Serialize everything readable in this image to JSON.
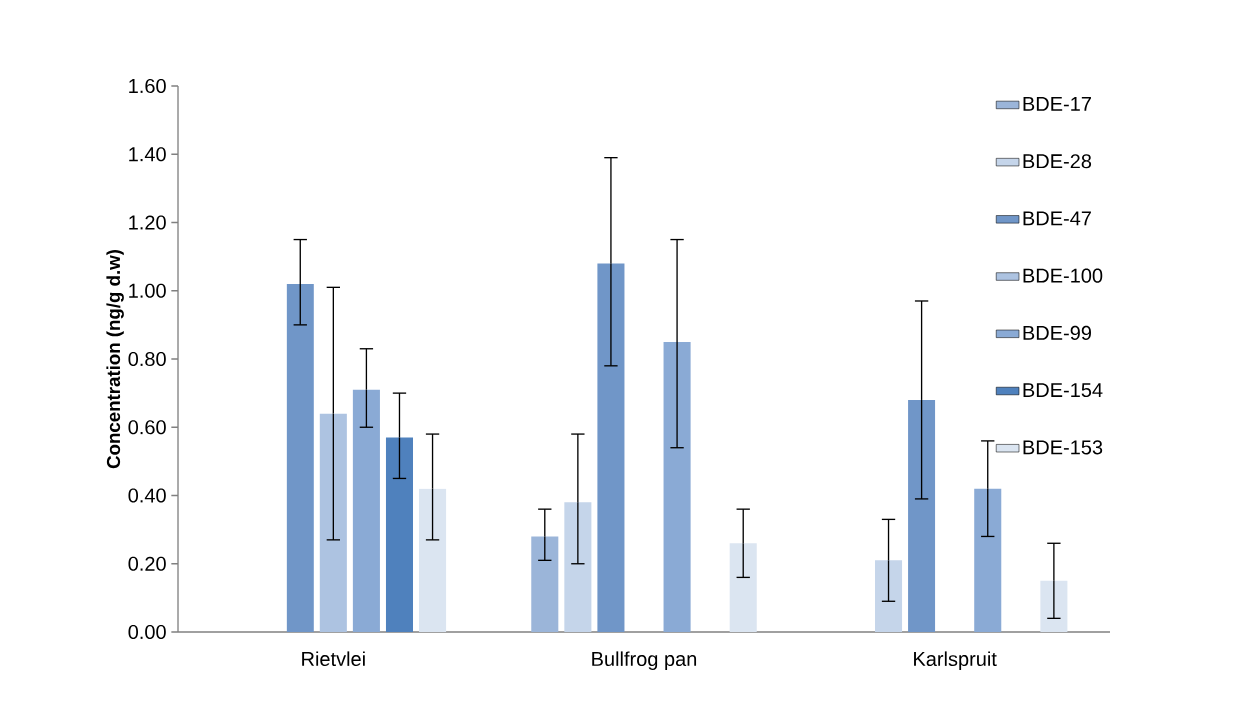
{
  "chart_data": {
    "type": "bar",
    "ylabel": "Concentration (ng/g d.w)",
    "categories": [
      "Rietvlei",
      "Bullfrog pan",
      "Karlspruit"
    ],
    "ylim": [
      0,
      1.6
    ],
    "yticks": [
      {
        "value": 0,
        "label": "0.00"
      },
      {
        "value": 0.2,
        "label": "0.20"
      },
      {
        "value": 0.4,
        "label": "0.40"
      },
      {
        "value": 0.6,
        "label": "0.60"
      },
      {
        "value": 0.8,
        "label": "0.80"
      },
      {
        "value": 1.0,
        "label": "1.00"
      },
      {
        "value": 1.2,
        "label": "1.20"
      },
      {
        "value": 1.4,
        "label": "1.40"
      },
      {
        "value": 1.6,
        "label": "1.60"
      }
    ],
    "legend": "right",
    "series": [
      {
        "name": "BDE-17",
        "color": "#9bb5d9",
        "values": [
          null,
          0.28,
          null
        ],
        "errors": [
          null,
          [
            0.21,
            0.36
          ],
          null
        ]
      },
      {
        "name": "BDE-28",
        "color": "#c5d5ea",
        "values": [
          null,
          0.38,
          0.21
        ],
        "errors": [
          null,
          [
            0.2,
            0.58
          ],
          [
            0.09,
            0.33
          ]
        ]
      },
      {
        "name": "BDE-47",
        "color": "#7096c8",
        "values": [
          1.02,
          1.08,
          0.68
        ],
        "errors": [
          [
            0.9,
            1.15
          ],
          [
            0.78,
            1.39
          ],
          [
            0.39,
            0.97
          ]
        ]
      },
      {
        "name": "BDE-100",
        "color": "#adc3e1",
        "values": [
          0.64,
          null,
          null
        ],
        "errors": [
          [
            0.27,
            1.01
          ],
          null,
          null
        ]
      },
      {
        "name": "BDE-99",
        "color": "#8aaad5",
        "values": [
          0.71,
          0.85,
          0.42
        ],
        "errors": [
          [
            0.6,
            0.83
          ],
          [
            0.54,
            1.15
          ],
          [
            0.28,
            0.56
          ]
        ]
      },
      {
        "name": "BDE-154",
        "color": "#4f81bd",
        "values": [
          0.57,
          null,
          null
        ],
        "errors": [
          [
            0.45,
            0.7
          ],
          null,
          null
        ]
      },
      {
        "name": "BDE-153",
        "color": "#dbe5f1",
        "values": [
          0.42,
          0.26,
          0.15
        ],
        "errors": [
          [
            0.27,
            0.58
          ],
          [
            0.16,
            0.36
          ],
          [
            0.04,
            0.26
          ]
        ]
      }
    ]
  }
}
